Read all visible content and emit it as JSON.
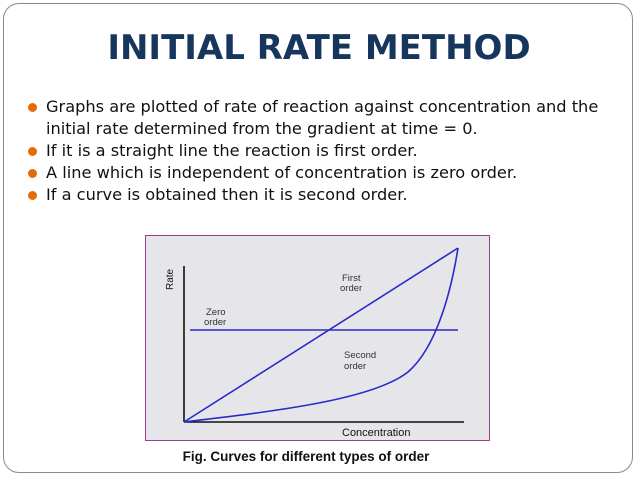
{
  "slide": {
    "title": "INITIAL RATE METHOD",
    "bullets": [
      "Graphs are plotted of rate of reaction against concentration and the initial rate determined from the gradient at time = 0.",
      "If it is a straight line the reaction is first order.",
      "A line which is independent of concentration is zero order.",
      "If a curve is obtained then it is second order."
    ],
    "bullet_color": "#e36c0a",
    "title_color": "#17365d"
  },
  "figure": {
    "ylabel": "Rate",
    "xlabel": "Concentration",
    "label_first_1": "First",
    "label_first_2": "order",
    "label_zero_1": "Zero",
    "label_zero_2": "order",
    "label_second_1": "Second",
    "label_second_2": "order",
    "caption": "Fig. Curves for different types of order",
    "line_color": "#2a2ac8",
    "border_color": "#a03c8c"
  }
}
